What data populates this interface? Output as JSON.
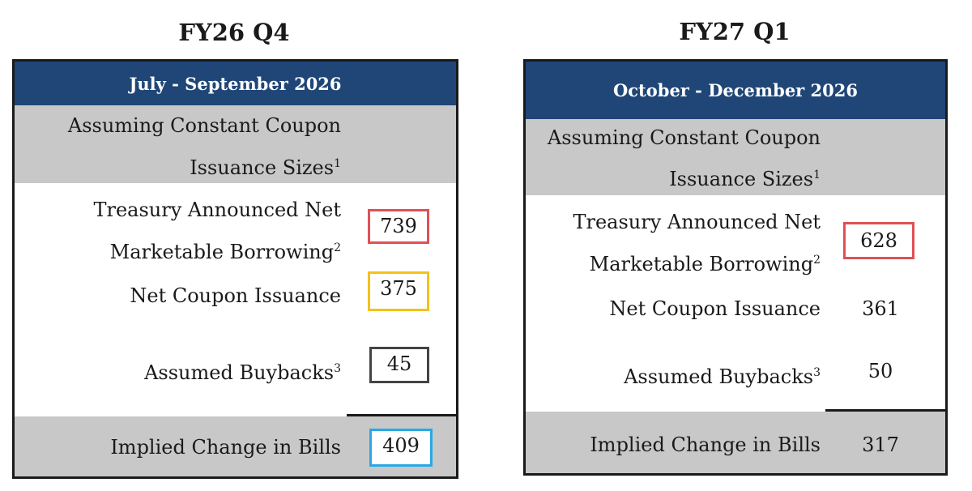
{
  "left": {
    "title": "FY26 Q4",
    "period": "July - September 2026",
    "assumption": {
      "line1": "Assuming Constant Coupon",
      "line2": "Issuance Sizes",
      "note": "1"
    },
    "borrowing": {
      "line1": "Treasury Announced Net",
      "line2": "Marketable Borrowing",
      "note": "2",
      "value": "739",
      "color": "#e05055"
    },
    "coupon": {
      "label": "Net Coupon Issuance",
      "value": "375",
      "color": "#f3c21b"
    },
    "buybacks": {
      "label": "Assumed Buybacks",
      "note": "3",
      "value": "45",
      "color": "#444444"
    },
    "bills": {
      "label": "Implied Change in Bills",
      "value": "409",
      "color": "#29a8e6"
    }
  },
  "right": {
    "title": "FY27 Q1",
    "period": "October - December 2026",
    "assumption": {
      "line1": "Assuming Constant Coupon",
      "line2": "Issuance Sizes",
      "note": "1"
    },
    "borrowing": {
      "line1": "Treasury Announced Net",
      "line2": "Marketable Borrowing",
      "note": "2",
      "value": "628",
      "color": "#e05055"
    },
    "coupon": {
      "label": "Net Coupon Issuance",
      "value": "361"
    },
    "buybacks": {
      "label": "Assumed Buybacks",
      "note": "3",
      "value": "50"
    },
    "bills": {
      "label": "Implied Change in Bills",
      "value": "317"
    }
  }
}
